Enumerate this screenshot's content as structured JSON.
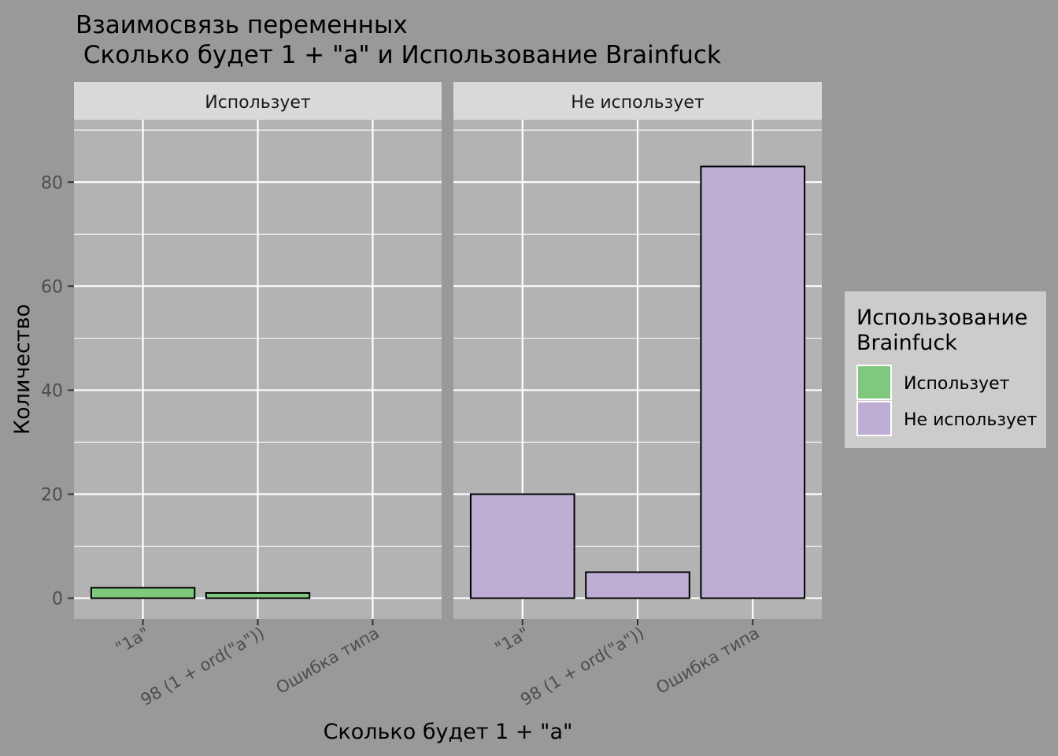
{
  "chart_data": {
    "type": "bar",
    "title_lines": [
      "Взаимосвязь переменных",
      " Сколько будет 1 + \"a\" и Использование Brainfuck"
    ],
    "xlabel": "Сколько будет 1 + \"a\"",
    "ylabel": "Количество",
    "categories": [
      "\"1a\"",
      "98 (1 + ord(\"a\"))",
      "Ошибка типа"
    ],
    "ylim": [
      -4,
      92
    ],
    "yticks": [
      0,
      20,
      40,
      60,
      80
    ],
    "facets": [
      {
        "label": "Использует",
        "color": "#7FC97F",
        "values": [
          2,
          1,
          0
        ]
      },
      {
        "label": "Не использует",
        "color": "#BEAED4",
        "values": [
          20,
          5,
          83
        ]
      }
    ],
    "legend": {
      "title_lines": [
        "Использование",
        "Brainfuck"
      ],
      "placement": "right",
      "items": [
        {
          "label": "Использует",
          "color": "#7FC97F"
        },
        {
          "label": "Не использует",
          "color": "#BEAED4"
        }
      ]
    },
    "colors": {
      "background": "#999999",
      "panel": "#B3B3B3",
      "strip": "#D9D9D9",
      "grid": "#FFFFFF",
      "legend_box": "#CCCCCC",
      "text": "#000000",
      "tick_text": "#4D4D4D"
    }
  }
}
